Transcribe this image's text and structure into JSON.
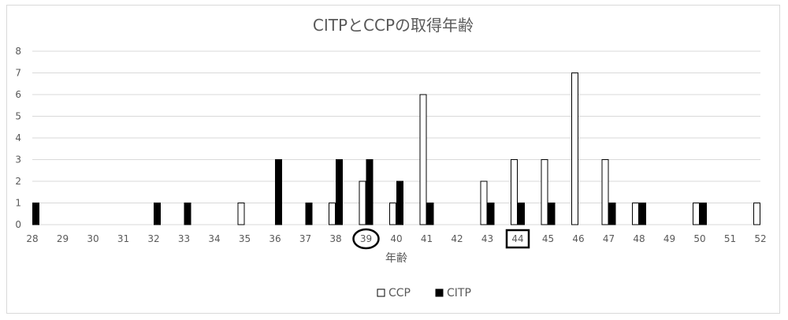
{
  "chart_data": {
    "type": "bar",
    "title": "CITPとCCPの取得年齢",
    "xlabel": "年齢",
    "ylabel": "",
    "ylim": [
      0,
      8
    ],
    "yticks": [
      0,
      1,
      2,
      3,
      4,
      5,
      6,
      7,
      8
    ],
    "grid": true,
    "legend_position": "bottom",
    "categories": [
      "28",
      "29",
      "30",
      "31",
      "32",
      "33",
      "34",
      "35",
      "36",
      "37",
      "38",
      "39",
      "40",
      "41",
      "42",
      "43",
      "44",
      "45",
      "46",
      "47",
      "48",
      "49",
      "50",
      "51",
      "52"
    ],
    "series": [
      {
        "name": "CCP",
        "color": "#ffffff",
        "stroke": "#000000",
        "values": [
          0,
          0,
          0,
          0,
          0,
          0,
          0,
          1,
          0,
          0,
          1,
          2,
          1,
          6,
          0,
          2,
          3,
          3,
          7,
          3,
          1,
          0,
          1,
          0,
          1
        ]
      },
      {
        "name": "CITP",
        "color": "#000000",
        "stroke": "#000000",
        "values": [
          1,
          0,
          0,
          0,
          1,
          1,
          0,
          0,
          3,
          1,
          3,
          3,
          2,
          1,
          0,
          1,
          1,
          1,
          0,
          1,
          1,
          0,
          1,
          0,
          0
        ]
      }
    ],
    "annotations": [
      {
        "category": "39",
        "shape": "circle"
      },
      {
        "category": "44",
        "shape": "rectangle"
      }
    ]
  },
  "colors": {
    "grid": "#d9d9d9",
    "text": "#595959",
    "bar_border": "#000000"
  }
}
